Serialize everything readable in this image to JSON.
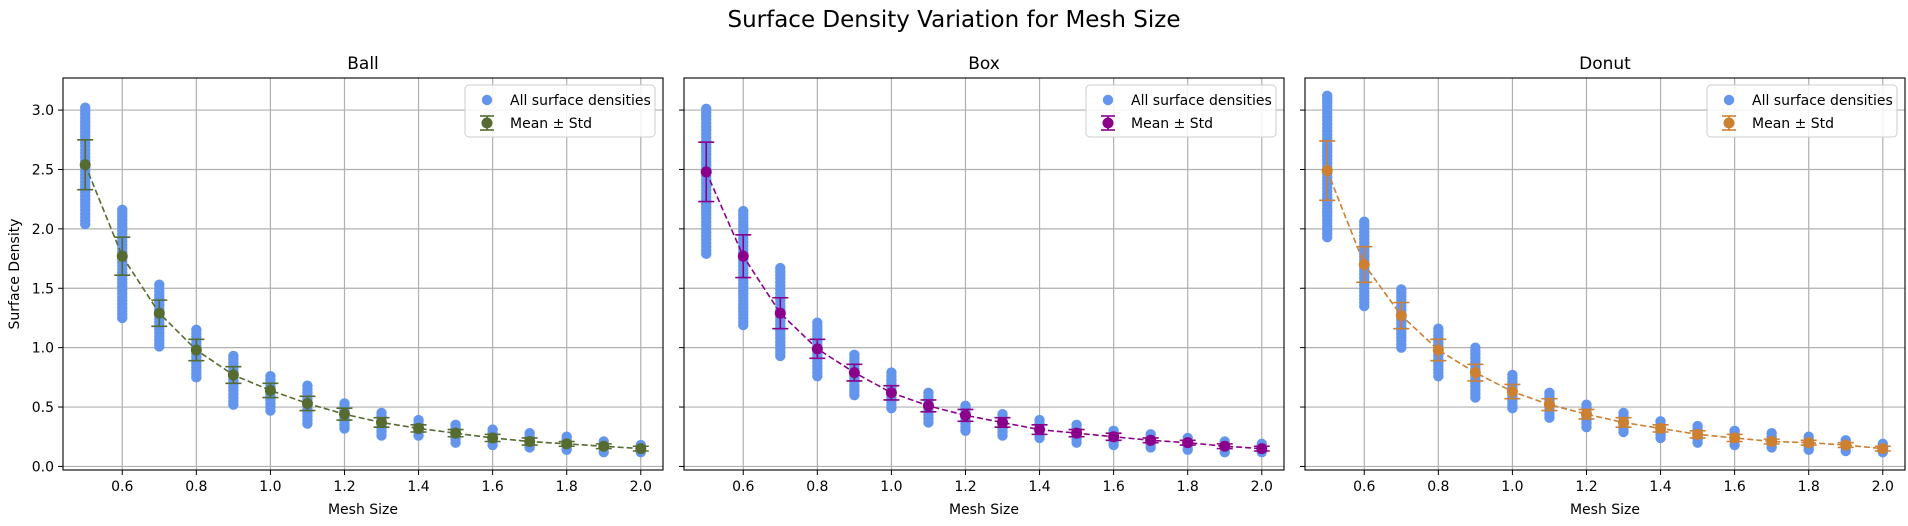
{
  "figure": {
    "title": "Surface Density Variation for Mesh Size",
    "scatter_color": "#6495ED",
    "grid_color": "#b0b0b0"
  },
  "chart_data": [
    {
      "type": "scatter",
      "title": "Ball",
      "xlabel": "Mesh Size",
      "ylabel": "Surface Density",
      "xlim": [
        0.44,
        2.06
      ],
      "ylim": [
        -0.03,
        3.27
      ],
      "xticks": [
        "0.6",
        "0.8",
        "1.0",
        "1.2",
        "1.4",
        "1.6",
        "1.8",
        "2.0"
      ],
      "yticks": [
        "0.0",
        "0.5",
        "1.0",
        "1.5",
        "2.0",
        "2.5",
        "3.0"
      ],
      "grid": true,
      "legend_position": "upper right",
      "legend": [
        "All surface densities",
        "Mean ± Std"
      ],
      "mean_color": "#556B2F",
      "series": [
        {
          "name": "All surface densities",
          "x": [
            0.5,
            0.6,
            0.7,
            0.8,
            0.9,
            1.0,
            1.1,
            1.2,
            1.3,
            1.4,
            1.5,
            1.6,
            1.7,
            1.8,
            1.9,
            2.0
          ],
          "min": [
            2.04,
            1.25,
            1.01,
            0.75,
            0.52,
            0.47,
            0.36,
            0.32,
            0.26,
            0.26,
            0.2,
            0.18,
            0.16,
            0.14,
            0.12,
            0.12
          ],
          "max": [
            3.02,
            2.16,
            1.53,
            1.15,
            0.93,
            0.76,
            0.68,
            0.53,
            0.45,
            0.39,
            0.35,
            0.31,
            0.28,
            0.25,
            0.21,
            0.18
          ]
        },
        {
          "name": "Mean ± Std",
          "x": [
            0.5,
            0.6,
            0.7,
            0.8,
            0.9,
            1.0,
            1.1,
            1.2,
            1.3,
            1.4,
            1.5,
            1.6,
            1.7,
            1.8,
            1.9,
            2.0
          ],
          "mean": [
            2.54,
            1.77,
            1.29,
            0.98,
            0.77,
            0.64,
            0.53,
            0.44,
            0.37,
            0.32,
            0.28,
            0.24,
            0.21,
            0.19,
            0.17,
            0.15
          ],
          "std": [
            0.21,
            0.16,
            0.11,
            0.09,
            0.07,
            0.06,
            0.06,
            0.05,
            0.04,
            0.03,
            0.03,
            0.03,
            0.03,
            0.02,
            0.02,
            0.02
          ]
        }
      ]
    },
    {
      "type": "scatter",
      "title": "Box",
      "xlabel": "Mesh Size",
      "ylabel": "",
      "xlim": [
        0.44,
        2.06
      ],
      "ylim": [
        -0.03,
        3.27
      ],
      "xticks": [
        "0.6",
        "0.8",
        "1.0",
        "1.2",
        "1.4",
        "1.6",
        "1.8",
        "2.0"
      ],
      "yticks": [
        "0.0",
        "0.5",
        "1.0",
        "1.5",
        "2.0",
        "2.5",
        "3.0"
      ],
      "grid": true,
      "legend_position": "upper right",
      "legend": [
        "All surface densities",
        "Mean ± Std"
      ],
      "mean_color": "#8B008B",
      "series": [
        {
          "name": "All surface densities",
          "x": [
            0.5,
            0.6,
            0.7,
            0.8,
            0.9,
            1.0,
            1.1,
            1.2,
            1.3,
            1.4,
            1.5,
            1.6,
            1.7,
            1.8,
            1.9,
            2.0
          ],
          "min": [
            1.79,
            1.19,
            0.93,
            0.76,
            0.6,
            0.49,
            0.37,
            0.3,
            0.26,
            0.24,
            0.2,
            0.18,
            0.16,
            0.14,
            0.12,
            0.12
          ],
          "max": [
            3.01,
            2.15,
            1.67,
            1.21,
            0.94,
            0.79,
            0.62,
            0.51,
            0.44,
            0.39,
            0.35,
            0.3,
            0.27,
            0.24,
            0.21,
            0.19
          ]
        },
        {
          "name": "Mean ± Std",
          "x": [
            0.5,
            0.6,
            0.7,
            0.8,
            0.9,
            1.0,
            1.1,
            1.2,
            1.3,
            1.4,
            1.5,
            1.6,
            1.7,
            1.8,
            1.9,
            2.0
          ],
          "mean": [
            2.48,
            1.77,
            1.29,
            0.99,
            0.79,
            0.62,
            0.51,
            0.43,
            0.37,
            0.31,
            0.28,
            0.25,
            0.22,
            0.2,
            0.17,
            0.15
          ],
          "std": [
            0.25,
            0.18,
            0.13,
            0.08,
            0.07,
            0.06,
            0.05,
            0.05,
            0.04,
            0.04,
            0.03,
            0.03,
            0.02,
            0.02,
            0.02,
            0.02
          ]
        }
      ]
    },
    {
      "type": "scatter",
      "title": "Donut",
      "xlabel": "Mesh Size",
      "ylabel": "",
      "xlim": [
        0.44,
        2.06
      ],
      "ylim": [
        -0.03,
        3.27
      ],
      "xticks": [
        "0.6",
        "0.8",
        "1.0",
        "1.2",
        "1.4",
        "1.6",
        "1.8",
        "2.0"
      ],
      "yticks": [
        "0.0",
        "0.5",
        "1.0",
        "1.5",
        "2.0",
        "2.5",
        "3.0"
      ],
      "grid": true,
      "legend_position": "upper right",
      "legend": [
        "All surface densities",
        "Mean ± Std"
      ],
      "mean_color": "#CD7F32",
      "series": [
        {
          "name": "All surface densities",
          "x": [
            0.5,
            0.6,
            0.7,
            0.8,
            0.9,
            1.0,
            1.1,
            1.2,
            1.3,
            1.4,
            1.5,
            1.6,
            1.7,
            1.8,
            1.9,
            2.0
          ],
          "min": [
            1.93,
            1.35,
            1.0,
            0.76,
            0.58,
            0.49,
            0.41,
            0.33,
            0.29,
            0.24,
            0.2,
            0.18,
            0.16,
            0.14,
            0.13,
            0.12
          ],
          "max": [
            3.12,
            2.06,
            1.49,
            1.16,
            1.0,
            0.77,
            0.62,
            0.52,
            0.45,
            0.38,
            0.34,
            0.3,
            0.28,
            0.25,
            0.22,
            0.19
          ]
        },
        {
          "name": "Mean ± Std",
          "x": [
            0.5,
            0.6,
            0.7,
            0.8,
            0.9,
            1.0,
            1.1,
            1.2,
            1.3,
            1.4,
            1.5,
            1.6,
            1.7,
            1.8,
            1.9,
            2.0
          ],
          "mean": [
            2.49,
            1.7,
            1.27,
            0.98,
            0.79,
            0.63,
            0.52,
            0.44,
            0.37,
            0.32,
            0.27,
            0.24,
            0.21,
            0.2,
            0.18,
            0.15
          ],
          "std": [
            0.25,
            0.15,
            0.11,
            0.09,
            0.07,
            0.06,
            0.05,
            0.04,
            0.04,
            0.03,
            0.03,
            0.03,
            0.02,
            0.02,
            0.02,
            0.02
          ]
        }
      ]
    }
  ]
}
